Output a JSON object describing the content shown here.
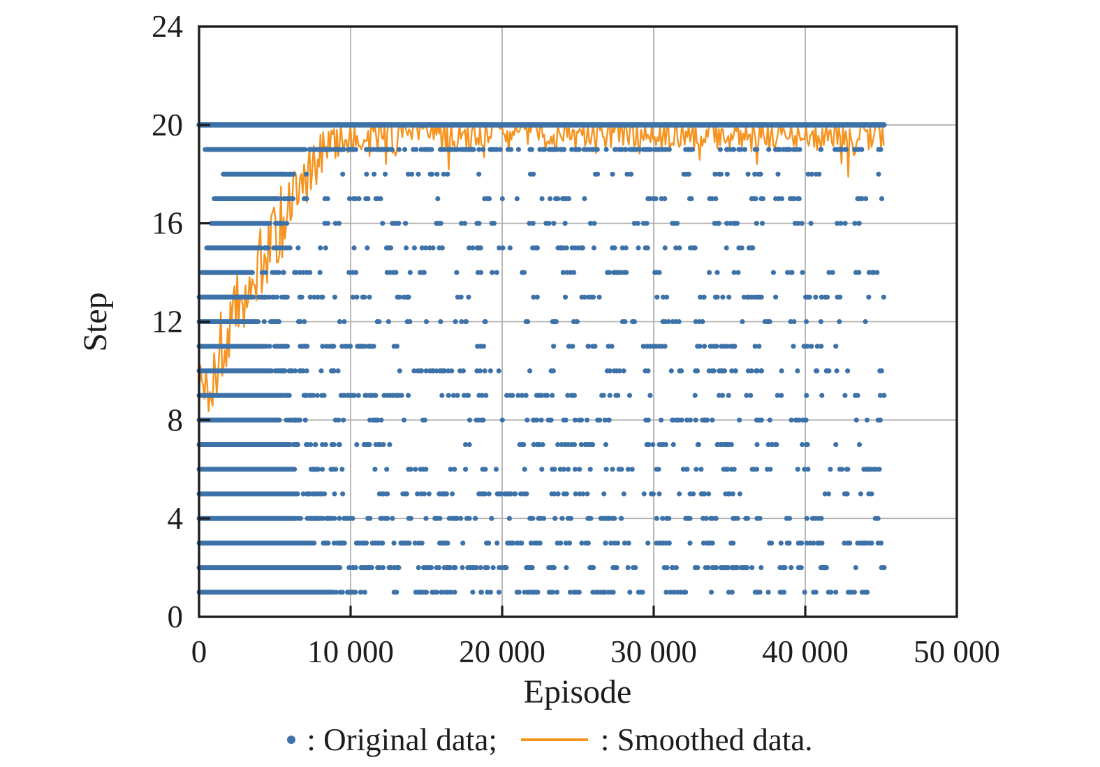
{
  "chart_data": {
    "type": "scatter",
    "title": "",
    "xlabel": "Episode",
    "ylabel": "Step",
    "xlim": [
      0,
      50000
    ],
    "ylim": [
      0,
      24
    ],
    "grid": true,
    "data_end_episode": 45200,
    "seed": 1337,
    "x_ticks": [
      {
        "v": 0,
        "label": "0"
      },
      {
        "v": 10000,
        "label": "10 000"
      },
      {
        "v": 20000,
        "label": "20 000"
      },
      {
        "v": 30000,
        "label": "30 000"
      },
      {
        "v": 40000,
        "label": "40 000"
      },
      {
        "v": 50000,
        "label": "50 000"
      }
    ],
    "y_ticks": [
      {
        "v": 0,
        "label": "0"
      },
      {
        "v": 4,
        "label": "4"
      },
      {
        "v": 8,
        "label": "8"
      },
      {
        "v": 12,
        "label": "12"
      },
      {
        "v": 16,
        "label": "16"
      },
      {
        "v": 20,
        "label": "20"
      },
      {
        "v": 24,
        "label": "24"
      }
    ],
    "series": [
      {
        "name": "Original data",
        "type": "scatter",
        "color": "#3d72a9",
        "note": "episode step counts, integer steps 1-20; each row dense from episode dense[0] to dense[1], ragged tail, then sparse scatter until data end",
        "rows": [
          {
            "step": 1,
            "dense": [
              0,
              8800
            ],
            "tail": 1400,
            "scatter": 58
          },
          {
            "step": 2,
            "dense": [
              0,
              9300
            ],
            "tail": 2200,
            "scatter": 66
          },
          {
            "step": 3,
            "dense": [
              0,
              7600
            ],
            "tail": 2000,
            "scatter": 60
          },
          {
            "step": 4,
            "dense": [
              0,
              6400
            ],
            "tail": 1800,
            "scatter": 62
          },
          {
            "step": 5,
            "dense": [
              0,
              6500
            ],
            "tail": 1600,
            "scatter": 50
          },
          {
            "step": 6,
            "dense": [
              0,
              6300
            ],
            "tail": 1400,
            "scatter": 48
          },
          {
            "step": 7,
            "dense": [
              0,
              6000
            ],
            "tail": 1500,
            "scatter": 44
          },
          {
            "step": 8,
            "dense": [
              0,
              5300
            ],
            "tail": 1900,
            "scatter": 50
          },
          {
            "step": 9,
            "dense": [
              0,
              5600
            ],
            "tail": 1600,
            "scatter": 48
          },
          {
            "step": 10,
            "dense": [
              0,
              4800
            ],
            "tail": 1400,
            "scatter": 44
          },
          {
            "step": 11,
            "dense": [
              0,
              4300
            ],
            "tail": 1400,
            "scatter": 42
          },
          {
            "step": 12,
            "dense": [
              0,
              3900
            ],
            "tail": 1600,
            "scatter": 36
          },
          {
            "step": 13,
            "dense": [
              0,
              3600
            ],
            "tail": 2200,
            "scatter": 40
          },
          {
            "step": 14,
            "dense": [
              200,
              3200
            ],
            "tail": 3200,
            "scatter": 36
          },
          {
            "step": 15,
            "dense": [
              500,
              4100
            ],
            "tail": 1200,
            "scatter": 36
          },
          {
            "step": 16,
            "dense": [
              800,
              4600
            ],
            "tail": 1100,
            "scatter": 32
          },
          {
            "step": 17,
            "dense": [
              1000,
              5000
            ],
            "tail": 1200,
            "scatter": 38
          },
          {
            "step": 18,
            "dense": [
              1600,
              5400
            ],
            "tail": 900,
            "scatter": 24
          },
          {
            "step": 19,
            "dense": [
              400,
              7000
            ],
            "tail": 1600,
            "scatter": 120
          },
          {
            "step": 20,
            "dense": [
              0,
              45200
            ],
            "tail": 0,
            "scatter": 0
          }
        ]
      },
      {
        "name": "Smoothed data",
        "type": "line",
        "color": "#f6931e",
        "clip_max": 20,
        "keypoints": [
          [
            0,
            10.0
          ],
          [
            400,
            8.9
          ],
          [
            900,
            9.8
          ],
          [
            1400,
            10.8
          ],
          [
            2000,
            11.8
          ],
          [
            2600,
            12.4
          ],
          [
            3200,
            13.1
          ],
          [
            3800,
            13.9
          ],
          [
            4400,
            14.9
          ],
          [
            5000,
            15.8
          ],
          [
            5600,
            16.4
          ],
          [
            6200,
            17.0
          ],
          [
            6800,
            17.6
          ],
          [
            7400,
            18.3
          ],
          [
            8000,
            18.9
          ],
          [
            8700,
            19.3
          ],
          [
            9500,
            19.55
          ],
          [
            11000,
            19.65
          ],
          [
            45200,
            19.65
          ]
        ],
        "amp_keypoints": [
          [
            0,
            2.2
          ],
          [
            3000,
            2.1
          ],
          [
            6000,
            1.8
          ],
          [
            8000,
            1.3
          ],
          [
            9500,
            1.0
          ],
          [
            12000,
            0.85
          ],
          [
            45200,
            0.85
          ]
        ]
      }
    ],
    "legend": {
      "position": "bottom-center",
      "items": [
        {
          "marker": "dot",
          "label": ": Original data;"
        },
        {
          "marker": "line",
          "label": ": Smoothed data."
        }
      ]
    },
    "colors": {
      "scatter": "#3d72a9",
      "line": "#f6931e",
      "grid": "#b0b0b0",
      "frame": "#1c1c1c",
      "text": "#1c1c1c",
      "background": "#ffffff"
    }
  }
}
